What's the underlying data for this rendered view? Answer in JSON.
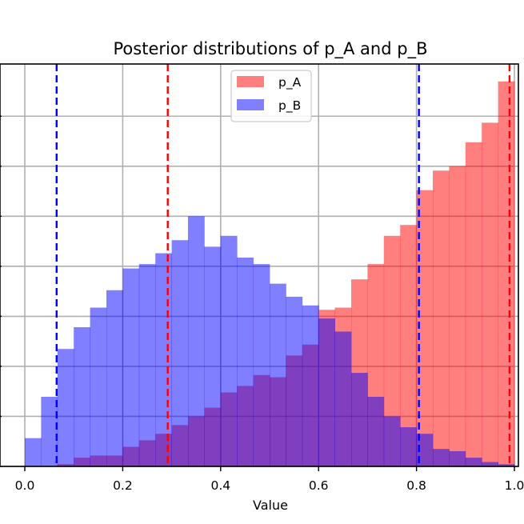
{
  "chart_data": {
    "type": "histogram",
    "title": "Posterior distributions of p_A and p_B",
    "xlabel": "Value",
    "ylabel": "",
    "xlim": [
      -0.005,
      1.0
    ],
    "ylim": [
      0,
      0.185
    ],
    "x_ticks": [
      0.0,
      0.2,
      0.4,
      0.6,
      0.8,
      1.0
    ],
    "x_tick_labels": [
      "0.0",
      "0.2",
      "0.4",
      "0.6",
      "0.8",
      "1.0"
    ],
    "y_grid_values": [
      0.0,
      0.023,
      0.046,
      0.069,
      0.092,
      0.115,
      0.138,
      0.161
    ],
    "grid": true,
    "legend": {
      "position": "top-center",
      "entries": [
        "p_A",
        "p_B"
      ]
    },
    "bin_width": 0.0333,
    "series": [
      {
        "name": "p_A",
        "color": "#ff0000",
        "alpha": 0.5,
        "bin_starts": [
          0.0,
          0.0333,
          0.0667,
          0.1,
          0.1333,
          0.1667,
          0.2,
          0.2333,
          0.2667,
          0.3,
          0.3333,
          0.3667,
          0.4,
          0.4333,
          0.4667,
          0.5,
          0.5333,
          0.5667,
          0.6,
          0.6333,
          0.6667,
          0.7,
          0.7333,
          0.7667,
          0.8,
          0.8333,
          0.8667,
          0.9,
          0.9333,
          0.9667
        ],
        "values": [
          0.0,
          0.0,
          0.001,
          0.004,
          0.005,
          0.005,
          0.009,
          0.012,
          0.015,
          0.019,
          0.023,
          0.027,
          0.034,
          0.037,
          0.042,
          0.041,
          0.051,
          0.056,
          0.072,
          0.073,
          0.086,
          0.093,
          0.106,
          0.111,
          0.127,
          0.136,
          0.138,
          0.149,
          0.158,
          0.177
        ]
      },
      {
        "name": "p_B",
        "color": "#0000ff",
        "alpha": 0.5,
        "bin_starts": [
          0.0,
          0.0333,
          0.0667,
          0.1,
          0.1333,
          0.1667,
          0.2,
          0.2333,
          0.2667,
          0.3,
          0.3333,
          0.3667,
          0.4,
          0.4333,
          0.4667,
          0.5,
          0.5333,
          0.5667,
          0.6,
          0.6333,
          0.6667,
          0.7,
          0.7333,
          0.7667,
          0.8,
          0.8333,
          0.8667,
          0.9,
          0.9333,
          0.9667
        ],
        "values": [
          0.013,
          0.032,
          0.054,
          0.064,
          0.073,
          0.081,
          0.091,
          0.093,
          0.098,
          0.104,
          0.115,
          0.101,
          0.106,
          0.096,
          0.093,
          0.084,
          0.078,
          0.074,
          0.068,
          0.062,
          0.043,
          0.032,
          0.023,
          0.018,
          0.015,
          0.008,
          0.007,
          0.004,
          0.002,
          0.001
        ]
      }
    ],
    "vlines": [
      {
        "x": 0.065,
        "color": "#0000ff",
        "style": "dashed"
      },
      {
        "x": 0.292,
        "color": "#ff0000",
        "style": "dashed"
      },
      {
        "x": 0.805,
        "color": "#0000ff",
        "style": "dashed"
      },
      {
        "x": 0.99,
        "color": "#ff0000",
        "style": "dashed"
      }
    ]
  }
}
